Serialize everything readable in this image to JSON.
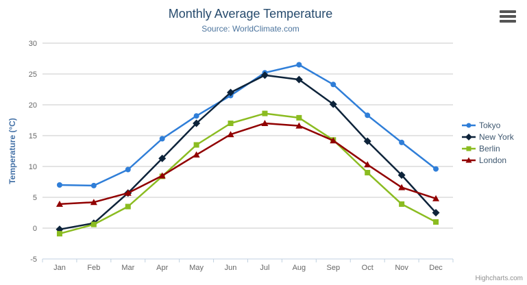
{
  "chart": {
    "title": "Monthly Average Temperature",
    "subtitle": "Source: WorldClimate.com",
    "credits": "Highcharts.com"
  },
  "chart_data": {
    "type": "line",
    "title": "Monthly Average Temperature",
    "subtitle": "Source: WorldClimate.com",
    "categories": [
      "Jan",
      "Feb",
      "Mar",
      "Apr",
      "May",
      "Jun",
      "Jul",
      "Aug",
      "Sep",
      "Oct",
      "Nov",
      "Dec"
    ],
    "series": [
      {
        "name": "Tokyo",
        "color": "#2f7ed8",
        "marker": "circle",
        "values": [
          7.0,
          6.9,
          9.5,
          14.5,
          18.2,
          21.5,
          25.2,
          26.5,
          23.3,
          18.3,
          13.9,
          9.6
        ]
      },
      {
        "name": "New York",
        "color": "#0d233a",
        "marker": "diamond",
        "values": [
          -0.2,
          0.8,
          5.7,
          11.3,
          17.0,
          22.0,
          24.8,
          24.1,
          20.1,
          14.1,
          8.6,
          2.5
        ]
      },
      {
        "name": "Berlin",
        "color": "#8bbc21",
        "marker": "square",
        "values": [
          -0.9,
          0.6,
          3.5,
          8.4,
          13.5,
          17.0,
          18.6,
          17.9,
          14.3,
          9.0,
          3.9,
          1.0
        ]
      },
      {
        "name": "London",
        "color": "#910000",
        "marker": "triangle",
        "values": [
          3.9,
          4.2,
          5.7,
          8.5,
          11.9,
          15.2,
          17.0,
          16.6,
          14.2,
          10.3,
          6.6,
          4.8
        ]
      }
    ],
    "xlabel": "",
    "ylabel": "Temperature (°C)",
    "yticks": [
      30,
      25,
      20,
      15,
      10,
      5,
      0,
      -5
    ],
    "ylim": [
      -5,
      30
    ],
    "grid": true,
    "legend_position": "right",
    "grid_color": "#C8C8C8",
    "axis_line_color": "#C0D0E0"
  }
}
